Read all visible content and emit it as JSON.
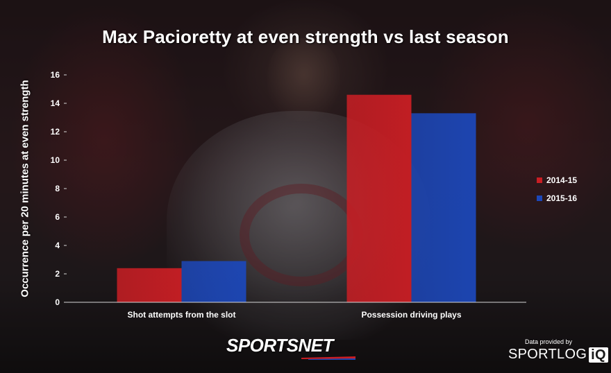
{
  "chart_data": {
    "type": "bar",
    "title": "Max Pacioretty at even strength vs last season",
    "ylabel": "Occurrence per 20 minutes at even strength",
    "xlabel": "",
    "categories": [
      "Shot attempts from the slot",
      "Possession driving plays"
    ],
    "series": [
      {
        "name": "2014-15",
        "values": [
          2.4,
          14.6
        ],
        "color": "#c91e24"
      },
      {
        "name": "2015-16",
        "values": [
          2.9,
          13.3
        ],
        "color": "#1c47b8"
      }
    ],
    "ylim": [
      0,
      16
    ],
    "yticks": [
      "0",
      "2",
      "4",
      "6",
      "8",
      "10",
      "12",
      "14",
      "16"
    ],
    "grid": false,
    "legend_position": "right"
  },
  "branding": {
    "network_logo": "SPORTSNET",
    "provided_by": "Data provided by",
    "provider_logo_left": "SPORTLOG",
    "provider_logo_right": "iQ"
  }
}
